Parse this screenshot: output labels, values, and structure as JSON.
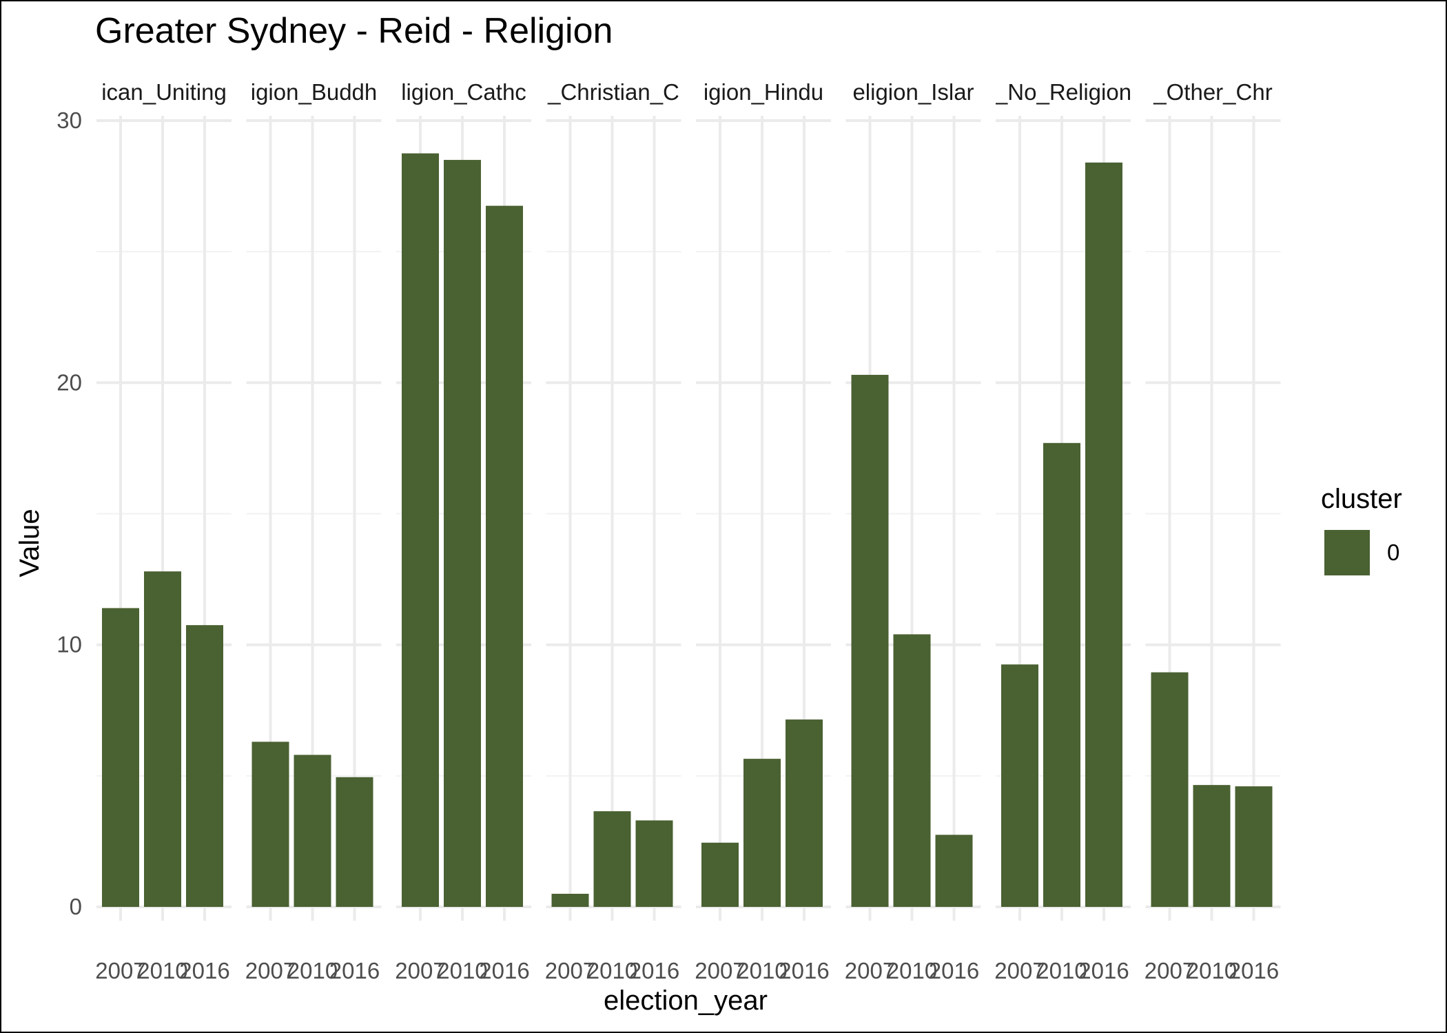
{
  "chart_data": {
    "type": "bar",
    "title": "Greater Sydney - Reid - Religion",
    "xlabel": "election_year",
    "ylabel": "Value",
    "ylim": [
      0,
      30
    ],
    "yticks": [
      0,
      10,
      20,
      30
    ],
    "categories": [
      "2007",
      "2010",
      "2016"
    ],
    "facets": [
      {
        "label": "ican_Uniting",
        "values": [
          11.4,
          12.8,
          10.75
        ]
      },
      {
        "label": "igion_Buddh",
        "values": [
          6.3,
          5.8,
          4.95
        ]
      },
      {
        "label": "ligion_Cathc",
        "values": [
          28.75,
          28.5,
          26.75
        ]
      },
      {
        "label": "_Christian_C",
        "values": [
          0.5,
          3.65,
          3.3
        ]
      },
      {
        "label": "igion_Hindu",
        "values": [
          2.45,
          5.65,
          7.15
        ]
      },
      {
        "label": "eligion_Islar",
        "values": [
          20.3,
          10.4,
          2.75
        ]
      },
      {
        "label": "_No_Religion",
        "values": [
          9.25,
          17.7,
          28.4
        ]
      },
      {
        "label": "_Other_Chr",
        "values": [
          8.95,
          4.65,
          4.6
        ]
      }
    ],
    "legend": {
      "title": "cluster",
      "entries": [
        "0"
      ],
      "position": "right"
    },
    "colors": {
      "bar": "#4a6132"
    },
    "grid": true
  }
}
